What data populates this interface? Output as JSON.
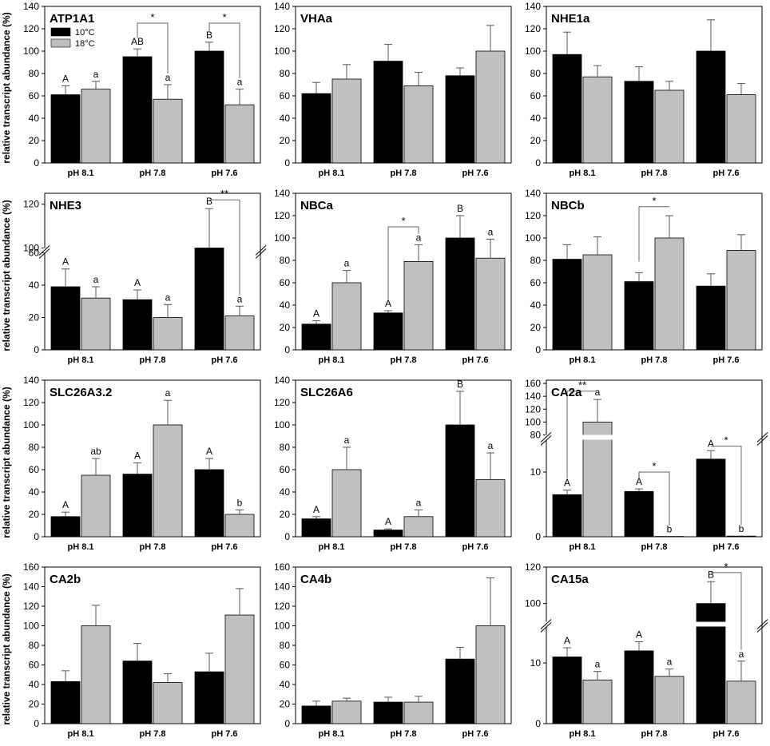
{
  "figure": {
    "ylabel": "relative transcript abundance (%)",
    "legend": [
      "10°C",
      "18°C"
    ],
    "colors": {
      "c10": "#000000",
      "c18": "#c0c0c0",
      "axis": "#000000",
      "errorbar": "#555555"
    }
  },
  "chart_data": [
    {
      "name": "ATP1A1",
      "type": "bar",
      "categories": [
        "pH 8.1",
        "pH 7.8",
        "pH 7.6"
      ],
      "series": [
        {
          "name": "10°C",
          "values": [
            61,
            95,
            100
          ],
          "errors": [
            8,
            7,
            8
          ],
          "letters": [
            "A",
            "AB",
            "B"
          ]
        },
        {
          "name": "18°C",
          "values": [
            66,
            57,
            52
          ],
          "errors": [
            7,
            13,
            14
          ],
          "letters": [
            "a",
            "a",
            "a"
          ]
        }
      ],
      "ylim": [
        0,
        140
      ],
      "ticks": [
        0,
        20,
        40,
        60,
        80,
        100,
        120,
        140
      ],
      "legend": true,
      "sig": [
        {
          "cat": 1,
          "top": 125,
          "label": "*"
        },
        {
          "cat": 2,
          "top": 125,
          "label": "*"
        }
      ]
    },
    {
      "name": "VHAa",
      "type": "bar",
      "categories": [
        "pH 8.1",
        "pH 7.8",
        "pH 7.6"
      ],
      "series": [
        {
          "name": "10°C",
          "values": [
            62,
            91,
            78
          ],
          "errors": [
            10,
            15,
            7
          ],
          "letters": []
        },
        {
          "name": "18°C",
          "values": [
            75,
            69,
            100
          ],
          "errors": [
            13,
            12,
            23
          ],
          "letters": []
        }
      ],
      "ylim": [
        0,
        140
      ],
      "ticks": [
        0,
        20,
        40,
        60,
        80,
        100,
        120,
        140
      ],
      "sig": []
    },
    {
      "name": "NHE1a",
      "type": "bar",
      "categories": [
        "pH 8.1",
        "pH 7.8",
        "pH 7.6"
      ],
      "series": [
        {
          "name": "10°C",
          "values": [
            97,
            73,
            100
          ],
          "errors": [
            20,
            13,
            28
          ],
          "letters": []
        },
        {
          "name": "18°C",
          "values": [
            77,
            65,
            61
          ],
          "errors": [
            10,
            8,
            10
          ],
          "letters": []
        }
      ],
      "ylim": [
        0,
        140
      ],
      "ticks": [
        0,
        20,
        40,
        60,
        80,
        100,
        120,
        140
      ],
      "sig": []
    },
    {
      "name": "NHE3",
      "type": "bar",
      "categories": [
        "pH 8.1",
        "pH 7.8",
        "pH 7.6"
      ],
      "series": [
        {
          "name": "10°C",
          "values": [
            39,
            31,
            100
          ],
          "errors": [
            11,
            6,
            18
          ],
          "letters": [
            "A",
            "A",
            "B"
          ]
        },
        {
          "name": "18°C",
          "values": [
            32,
            20,
            21
          ],
          "errors": [
            7,
            8,
            6
          ],
          "letters": [
            "a",
            "a",
            "a"
          ]
        }
      ],
      "ylim": [
        0,
        125
      ],
      "ticks": [
        0,
        20,
        40,
        60,
        100,
        120
      ],
      "broken": [
        60,
        100
      ],
      "sig": [
        {
          "cat": 2,
          "top": 122,
          "label": "**"
        }
      ]
    },
    {
      "name": "NBCa",
      "type": "bar",
      "categories": [
        "pH 8.1",
        "pH 7.8",
        "pH 7.6"
      ],
      "series": [
        {
          "name": "10°C",
          "values": [
            23,
            33,
            100
          ],
          "errors": [
            3,
            2,
            20
          ],
          "letters": [
            "A",
            "A",
            "B"
          ]
        },
        {
          "name": "18°C",
          "values": [
            60,
            79,
            82
          ],
          "errors": [
            11,
            15,
            17
          ],
          "letters": [
            "a",
            "a",
            "a"
          ]
        }
      ],
      "ylim": [
        0,
        140
      ],
      "ticks": [
        0,
        20,
        40,
        60,
        80,
        100,
        120,
        140
      ],
      "sig": [
        {
          "cat": 1,
          "top": 110,
          "label": "*"
        }
      ]
    },
    {
      "name": "NBCb",
      "type": "bar",
      "categories": [
        "pH 8.1",
        "pH 7.8",
        "pH 7.6"
      ],
      "series": [
        {
          "name": "10°C",
          "values": [
            81,
            61,
            57
          ],
          "errors": [
            13,
            8,
            11
          ],
          "letters": []
        },
        {
          "name": "18°C",
          "values": [
            85,
            100,
            89
          ],
          "errors": [
            16,
            20,
            14
          ],
          "letters": []
        }
      ],
      "ylim": [
        0,
        140
      ],
      "ticks": [
        0,
        20,
        40,
        60,
        80,
        100,
        120,
        140
      ],
      "sig": [
        {
          "cat": 1,
          "top": 128,
          "label": "*"
        }
      ]
    },
    {
      "name": "SLC26A3.2",
      "type": "bar",
      "categories": [
        "pH 8.1",
        "pH 7.8",
        "pH 7.6"
      ],
      "series": [
        {
          "name": "10°C",
          "values": [
            18,
            56,
            60
          ],
          "errors": [
            4,
            10,
            10
          ],
          "letters": [
            "A",
            "A",
            "A"
          ]
        },
        {
          "name": "18°C",
          "values": [
            55,
            100,
            20
          ],
          "errors": [
            15,
            22,
            4
          ],
          "letters": [
            "ab",
            "a",
            "b"
          ]
        }
      ],
      "ylim": [
        0,
        140
      ],
      "ticks": [
        0,
        20,
        40,
        60,
        80,
        100,
        120,
        140
      ],
      "sig": []
    },
    {
      "name": "SLC26A6",
      "type": "bar",
      "categories": [
        "pH 8.1",
        "pH 7.8",
        "pH 7.6"
      ],
      "series": [
        {
          "name": "10°C",
          "values": [
            16,
            6,
            100
          ],
          "errors": [
            2,
            1,
            30
          ],
          "letters": [
            "A",
            "A",
            "B"
          ]
        },
        {
          "name": "18°C",
          "values": [
            60,
            18,
            51
          ],
          "errors": [
            20,
            6,
            24
          ],
          "letters": [
            "a",
            "a",
            "a"
          ]
        }
      ],
      "ylim": [
        0,
        140
      ],
      "ticks": [
        0,
        20,
        40,
        60,
        80,
        100,
        120,
        140
      ],
      "sig": []
    },
    {
      "name": "CA2a",
      "type": "bar",
      "categories": [
        "pH 8.1",
        "pH 7.8",
        "pH 7.6"
      ],
      "series": [
        {
          "name": "10°C",
          "values": [
            6.5,
            7,
            12
          ],
          "errors": [
            0.7,
            0.4,
            1.3
          ],
          "letters": [
            "A",
            "A",
            "A"
          ]
        },
        {
          "name": "18°C",
          "values": [
            100,
            0.05,
            0.1
          ],
          "errors": [
            35,
            0,
            0
          ],
          "letters": [
            "a",
            "b",
            "b"
          ]
        }
      ],
      "ylim": [
        0,
        165
      ],
      "ticks": [
        0,
        10,
        80,
        100,
        120,
        140,
        160
      ],
      "broken": [
        15,
        80
      ],
      "sig": [
        {
          "cat": 0,
          "top": 148,
          "label": "**"
        },
        {
          "cat": 1,
          "top": 10,
          "label": "*"
        },
        {
          "cat": 2,
          "top": 14,
          "label": "*"
        }
      ]
    },
    {
      "name": "CA2b",
      "type": "bar",
      "categories": [
        "pH 8.1",
        "pH 7.8",
        "pH 7.6"
      ],
      "series": [
        {
          "name": "10°C",
          "values": [
            43,
            64,
            53
          ],
          "errors": [
            11,
            18,
            19
          ],
          "letters": []
        },
        {
          "name": "18°C",
          "values": [
            100,
            42,
            111
          ],
          "errors": [
            21,
            9,
            27
          ],
          "letters": []
        }
      ],
      "ylim": [
        0,
        160
      ],
      "ticks": [
        0,
        20,
        40,
        60,
        80,
        100,
        120,
        140,
        160
      ],
      "sig": []
    },
    {
      "name": "CA4b",
      "type": "bar",
      "categories": [
        "pH 8.1",
        "pH 7.8",
        "pH 7.6"
      ],
      "series": [
        {
          "name": "10°C",
          "values": [
            18,
            22,
            66
          ],
          "errors": [
            5,
            5,
            12
          ],
          "letters": []
        },
        {
          "name": "18°C",
          "values": [
            23,
            22,
            100
          ],
          "errors": [
            3,
            6,
            49
          ],
          "letters": []
        }
      ],
      "ylim": [
        0,
        160
      ],
      "ticks": [
        0,
        20,
        40,
        60,
        80,
        100,
        120,
        140,
        160
      ],
      "sig": []
    },
    {
      "name": "CA15a",
      "type": "bar",
      "categories": [
        "pH 8.1",
        "pH 7.8",
        "pH 7.6"
      ],
      "series": [
        {
          "name": "10°C",
          "values": [
            11,
            12,
            100
          ],
          "errors": [
            1.5,
            1.5,
            12
          ],
          "letters": [
            "A",
            "A",
            "B"
          ]
        },
        {
          "name": "18°C",
          "values": [
            7.2,
            7.8,
            7
          ],
          "errors": [
            1.4,
            1.2,
            3.3
          ],
          "letters": [
            "a",
            "a",
            "a"
          ]
        }
      ],
      "ylim": [
        0,
        120
      ],
      "ticks": [
        0,
        10,
        100,
        120
      ],
      "broken": [
        16,
        90
      ],
      "sig": [
        {
          "cat": 2,
          "top": 117,
          "label": "*"
        }
      ]
    }
  ]
}
